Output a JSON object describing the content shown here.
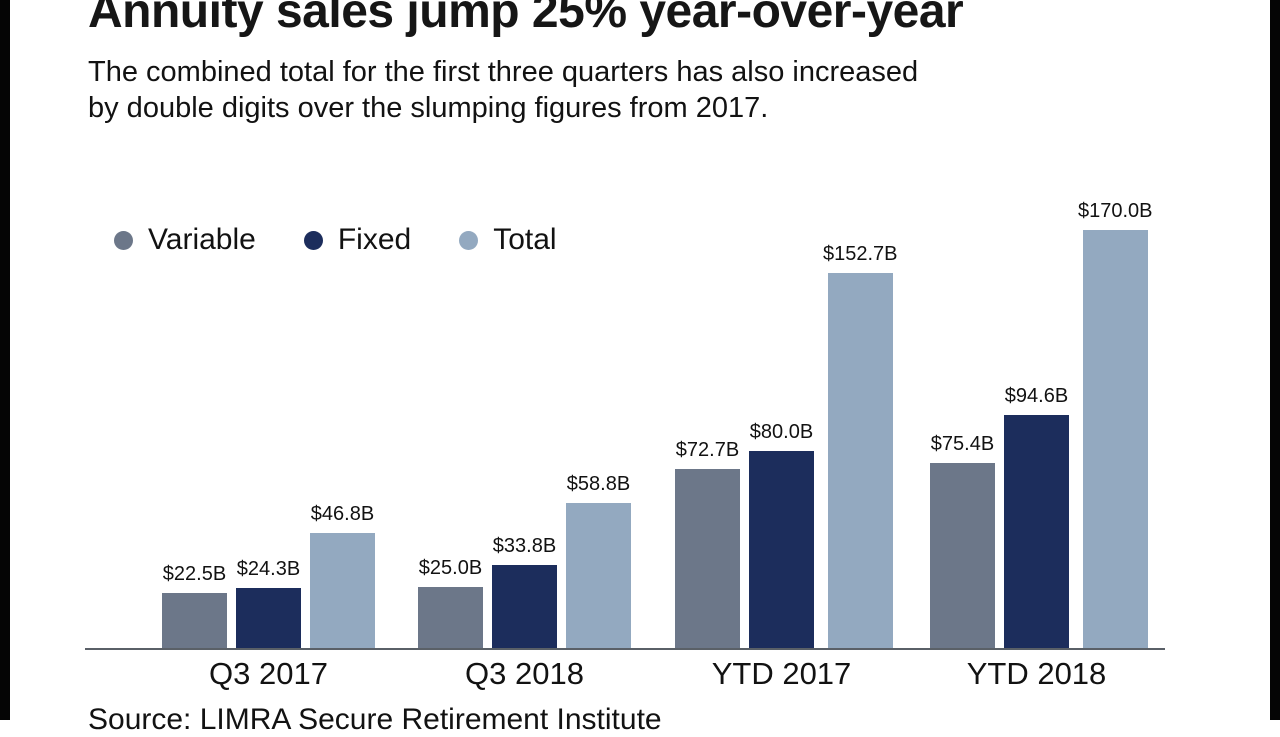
{
  "chart_data": {
    "type": "bar",
    "title": "Annuity sales jump 25% year-over-year",
    "subtitle_lines": [
      "The combined total for the first three quarters has also increased",
      "by double digits over the slumping figures from 2017."
    ],
    "categories": [
      "Q3 2017",
      "Q3 2018",
      "YTD 2017",
      "YTD 2018"
    ],
    "series": [
      {
        "name": "Variable",
        "color": "#6c7789",
        "values": [
          22.5,
          25.0,
          72.7,
          75.4
        ],
        "labels": [
          "$22.5B",
          "$25.0B",
          "$72.7B",
          "$75.4B"
        ]
      },
      {
        "name": "Fixed",
        "color": "#1c2d5c",
        "values": [
          24.3,
          33.8,
          80.0,
          94.6
        ],
        "labels": [
          "$24.3B",
          "$33.8B",
          "$80.0B",
          "$94.6B"
        ]
      },
      {
        "name": "Total",
        "color": "#93a9c0",
        "values": [
          46.8,
          58.8,
          152.7,
          170.0
        ],
        "labels": [
          "$46.8B",
          "$58.8B",
          "$152.7B",
          "$170.0B"
        ]
      }
    ],
    "xlabel": "",
    "ylabel": "",
    "ylim": [
      0,
      175
    ],
    "value_unit": "$B",
    "grid": false,
    "legend_position": "top-left",
    "source": "Source: LIMRA Secure Retirement Institute"
  }
}
